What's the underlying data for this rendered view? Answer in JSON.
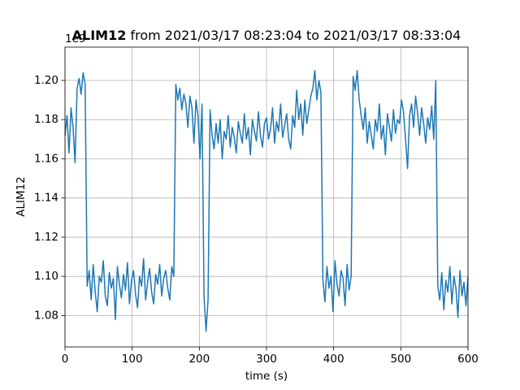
{
  "chart_data": {
    "type": "line",
    "title_name": "ALIM12",
    "title_range": "from 2021/03/17 08:23:04 to 2021/03/17 08:33:04",
    "xlabel": "time (s)",
    "ylabel": "ALIM12",
    "y_offset": "1e9",
    "xlim": [
      0,
      600
    ],
    "ylim": [
      1.064,
      1.217
    ],
    "xticks": [
      0,
      100,
      200,
      300,
      400,
      500,
      600
    ],
    "yticks": [
      1.08,
      {
        "value": 1.1,
        "label": "1.10"
      },
      1.12,
      1.14,
      1.16,
      1.18,
      {
        "value": 1.2,
        "label": "1.20"
      }
    ],
    "grid": true,
    "x": [
      0,
      3,
      6,
      9,
      12,
      15,
      18,
      21,
      24,
      27,
      30,
      33,
      36,
      39,
      42,
      45,
      48,
      51,
      54,
      57,
      60,
      63,
      66,
      69,
      72,
      75,
      78,
      81,
      84,
      87,
      90,
      93,
      96,
      99,
      102,
      105,
      108,
      111,
      114,
      117,
      120,
      123,
      126,
      129,
      132,
      135,
      138,
      141,
      144,
      147,
      150,
      153,
      156,
      159,
      162,
      165,
      168,
      171,
      174,
      177,
      180,
      183,
      186,
      189,
      192,
      195,
      198,
      201,
      204,
      207,
      210,
      213,
      216,
      219,
      222,
      225,
      228,
      231,
      234,
      237,
      240,
      243,
      246,
      249,
      252,
      255,
      258,
      261,
      264,
      267,
      270,
      273,
      276,
      279,
      282,
      285,
      288,
      291,
      294,
      297,
      300,
      303,
      306,
      309,
      312,
      315,
      318,
      321,
      324,
      327,
      330,
      333,
      336,
      339,
      342,
      345,
      348,
      351,
      354,
      357,
      360,
      363,
      366,
      369,
      372,
      375,
      378,
      381,
      384,
      387,
      390,
      393,
      396,
      399,
      402,
      405,
      408,
      411,
      414,
      417,
      420,
      423,
      426,
      429,
      432,
      435,
      438,
      441,
      444,
      447,
      450,
      453,
      456,
      459,
      462,
      465,
      468,
      471,
      474,
      477,
      480,
      483,
      486,
      489,
      492,
      495,
      498,
      501,
      504,
      507,
      510,
      513,
      516,
      519,
      522,
      525,
      528,
      531,
      534,
      537,
      540,
      543,
      546,
      549,
      552,
      555,
      558,
      561,
      564,
      567,
      570,
      573,
      576,
      579,
      582,
      585,
      588,
      591,
      594,
      597,
      600
    ],
    "series": [
      {
        "color": "#1f77b4",
        "values": [
          1.172,
          1.182,
          1.163,
          1.186,
          1.176,
          1.158,
          1.196,
          1.201,
          1.193,
          1.204,
          1.198,
          1.095,
          1.103,
          1.088,
          1.106,
          1.092,
          1.082,
          1.1,
          1.097,
          1.108,
          1.09,
          1.085,
          1.102,
          1.094,
          1.099,
          1.078,
          1.105,
          1.096,
          1.089,
          1.101,
          1.093,
          1.107,
          1.086,
          1.098,
          1.103,
          1.091,
          1.084,
          1.1,
          1.095,
          1.109,
          1.088,
          1.097,
          1.104,
          1.092,
          1.086,
          1.101,
          1.096,
          1.106,
          1.09,
          1.099,
          1.103,
          1.094,
          1.088,
          1.105,
          1.1,
          1.198,
          1.19,
          1.196,
          1.185,
          1.193,
          1.188,
          1.176,
          1.192,
          1.186,
          1.168,
          1.19,
          1.182,
          1.16,
          1.188,
          1.09,
          1.072,
          1.088,
          1.185,
          1.172,
          1.165,
          1.178,
          1.168,
          1.18,
          1.16,
          1.174,
          1.17,
          1.182,
          1.166,
          1.176,
          1.171,
          1.163,
          1.179,
          1.173,
          1.168,
          1.183,
          1.17,
          1.176,
          1.162,
          1.18,
          1.174,
          1.169,
          1.184,
          1.172,
          1.166,
          1.178,
          1.181,
          1.17,
          1.175,
          1.186,
          1.168,
          1.179,
          1.174,
          1.188,
          1.171,
          1.177,
          1.183,
          1.17,
          1.165,
          1.182,
          1.176,
          1.195,
          1.18,
          1.188,
          1.172,
          1.19,
          1.178,
          1.185,
          1.192,
          1.196,
          1.205,
          1.19,
          1.2,
          1.194,
          1.098,
          1.087,
          1.105,
          1.094,
          1.1,
          1.082,
          1.108,
          1.096,
          1.09,
          1.103,
          1.099,
          1.085,
          1.106,
          1.093,
          1.1,
          1.202,
          1.195,
          1.205,
          1.19,
          1.182,
          1.175,
          1.186,
          1.168,
          1.179,
          1.172,
          1.165,
          1.18,
          1.174,
          1.188,
          1.17,
          1.177,
          1.162,
          1.183,
          1.176,
          1.169,
          1.185,
          1.173,
          1.18,
          1.178,
          1.19,
          1.184,
          1.17,
          1.155,
          1.182,
          1.188,
          1.176,
          1.192,
          1.183,
          1.172,
          1.186,
          1.178,
          1.168,
          1.181,
          1.175,
          1.187,
          1.17,
          1.2,
          1.095,
          1.088,
          1.102,
          1.083,
          1.098,
          1.092,
          1.105,
          1.086,
          1.1,
          1.094,
          1.079,
          1.103,
          1.09,
          1.097,
          1.085,
          1.1
        ]
      }
    ]
  }
}
